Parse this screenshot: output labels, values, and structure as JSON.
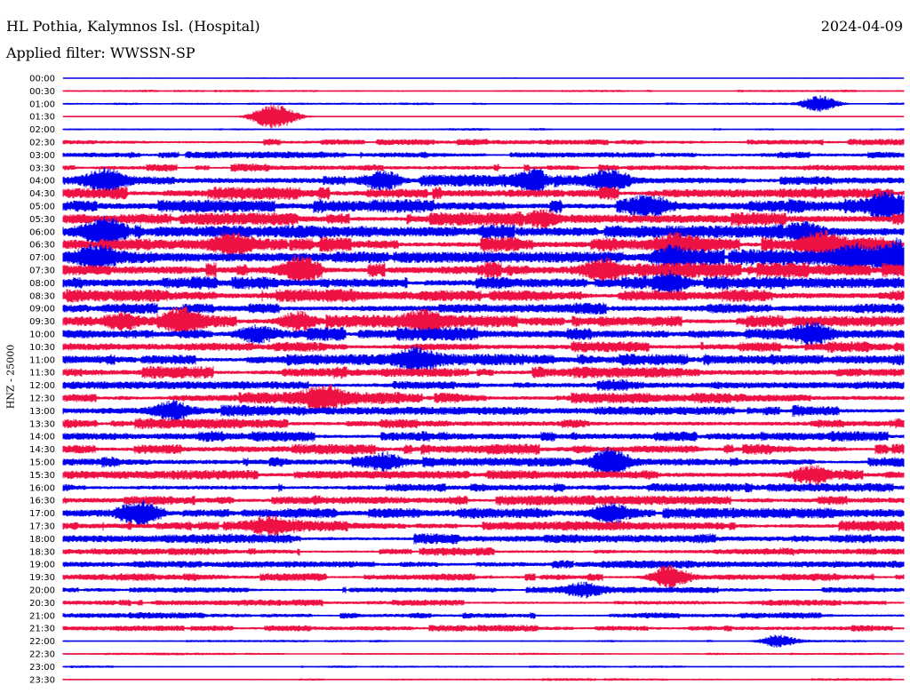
{
  "header": {
    "title": "HL Pothia, Kalymnos Isl. (Hospital)",
    "date": "2024-04-09",
    "filter": "Applied filter: WWSSN-SP"
  },
  "chart_data": {
    "type": "seismogram-helicorder",
    "ylabel": "HNZ - 25000",
    "row_labels": [
      "00:00",
      "00:30",
      "01:00",
      "01:30",
      "02:00",
      "02:30",
      "03:00",
      "03:30",
      "04:00",
      "04:30",
      "05:00",
      "05:30",
      "06:00",
      "06:30",
      "07:00",
      "07:30",
      "08:00",
      "08:30",
      "09:00",
      "09:30",
      "10:00",
      "10:30",
      "11:00",
      "11:30",
      "12:00",
      "12:30",
      "13:00",
      "13:30",
      "14:00",
      "14:30",
      "15:00",
      "15:30",
      "16:00",
      "16:30",
      "17:00",
      "17:30",
      "18:00",
      "18:30",
      "19:00",
      "19:30",
      "20:00",
      "20:30",
      "21:00",
      "21:30",
      "22:00",
      "22:30",
      "23:00",
      "23:30"
    ],
    "colors": [
      "#0000ee",
      "#ee1144"
    ],
    "noise_level": [
      0.5,
      1.0,
      1.0,
      0.5,
      1.0,
      2.5,
      2.5,
      3.0,
      4.5,
      5.0,
      5.5,
      5.5,
      5.5,
      5.5,
      6.0,
      6.0,
      5.0,
      5.0,
      4.5,
      5.0,
      5.0,
      4.5,
      4.5,
      4.5,
      4.5,
      4.5,
      4.5,
      4.0,
      4.0,
      4.0,
      4.0,
      4.0,
      4.0,
      4.0,
      4.0,
      4.0,
      4.0,
      3.0,
      3.0,
      3.0,
      2.5,
      2.5,
      2.5,
      2.5,
      1.0,
      1.0,
      1.0,
      1.0
    ],
    "events": [
      {
        "row": 2,
        "t": 0.9,
        "amp": 9
      },
      {
        "row": 3,
        "t": 0.24,
        "amp": 8
      },
      {
        "row": 3,
        "t": 0.26,
        "amp": 9
      },
      {
        "row": 8,
        "t": 0.05,
        "amp": 11
      },
      {
        "row": 8,
        "t": 0.38,
        "amp": 9
      },
      {
        "row": 8,
        "t": 0.56,
        "amp": 10
      },
      {
        "row": 8,
        "t": 0.65,
        "amp": 8
      },
      {
        "row": 10,
        "t": 0.7,
        "amp": 9
      },
      {
        "row": 10,
        "t": 0.98,
        "amp": 12
      },
      {
        "row": 11,
        "t": 0.57,
        "amp": 9
      },
      {
        "row": 12,
        "t": 0.05,
        "amp": 13
      },
      {
        "row": 12,
        "t": 0.88,
        "amp": 9
      },
      {
        "row": 13,
        "t": 0.2,
        "amp": 10
      },
      {
        "row": 13,
        "t": 0.73,
        "amp": 8
      },
      {
        "row": 13,
        "t": 0.9,
        "amp": 10
      },
      {
        "row": 14,
        "t": 0.04,
        "amp": 11
      },
      {
        "row": 14,
        "t": 0.72,
        "amp": 8
      },
      {
        "row": 14,
        "t": 0.94,
        "amp": 9
      },
      {
        "row": 14,
        "t": 0.99,
        "amp": 14
      },
      {
        "row": 15,
        "t": 0.28,
        "amp": 10
      },
      {
        "row": 15,
        "t": 0.64,
        "amp": 10
      },
      {
        "row": 16,
        "t": 0.72,
        "amp": 11
      },
      {
        "row": 19,
        "t": 0.07,
        "amp": 8
      },
      {
        "row": 19,
        "t": 0.14,
        "amp": 13
      },
      {
        "row": 19,
        "t": 0.28,
        "amp": 10
      },
      {
        "row": 19,
        "t": 0.43,
        "amp": 8
      },
      {
        "row": 20,
        "t": 0.23,
        "amp": 9
      },
      {
        "row": 20,
        "t": 0.89,
        "amp": 10
      },
      {
        "row": 22,
        "t": 0.42,
        "amp": 10
      },
      {
        "row": 25,
        "t": 0.31,
        "amp": 10
      },
      {
        "row": 26,
        "t": 0.13,
        "amp": 9
      },
      {
        "row": 30,
        "t": 0.39,
        "amp": 7
      },
      {
        "row": 30,
        "t": 0.65,
        "amp": 12
      },
      {
        "row": 31,
        "t": 0.89,
        "amp": 8
      },
      {
        "row": 34,
        "t": 0.09,
        "amp": 10
      },
      {
        "row": 34,
        "t": 0.65,
        "amp": 9
      },
      {
        "row": 35,
        "t": 0.25,
        "amp": 10
      },
      {
        "row": 39,
        "t": 0.72,
        "amp": 10
      },
      {
        "row": 40,
        "t": 0.62,
        "amp": 6
      },
      {
        "row": 44,
        "t": 0.85,
        "amp": 6
      }
    ]
  }
}
